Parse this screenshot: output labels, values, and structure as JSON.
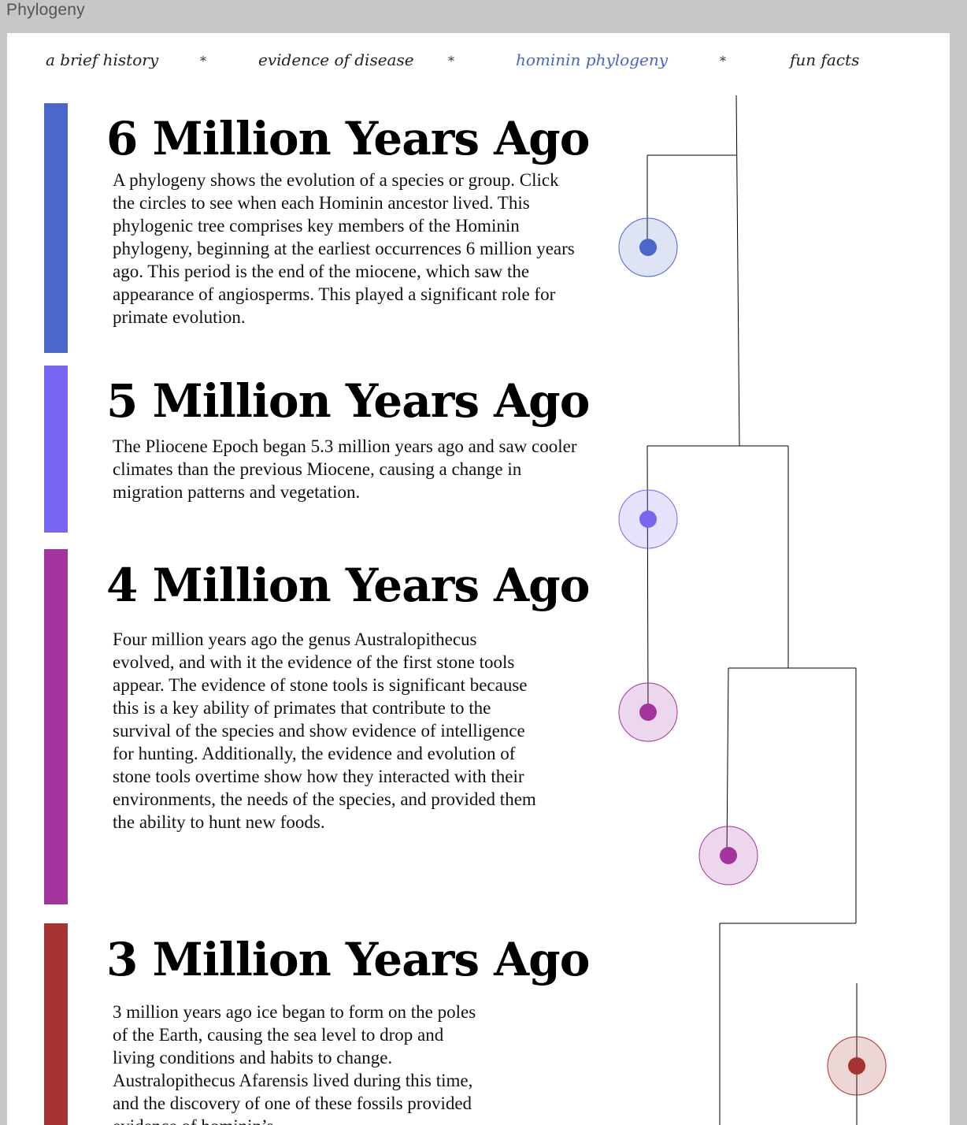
{
  "window": {
    "title": "Phylogeny"
  },
  "nav": {
    "items": [
      {
        "label": "a brief history"
      },
      {
        "label": "evidence of disease"
      },
      {
        "label": "hominin phylogeny",
        "active": true
      },
      {
        "label": "fun facts"
      }
    ],
    "separator": "*"
  },
  "colors": {
    "era6": "#4b67c9",
    "era5": "#7766f2",
    "era4": "#a4359f",
    "era3": "#a63432",
    "active_link": "#4a63c7"
  },
  "eras": [
    {
      "title": "6 Million Years Ago",
      "text": "A phylogeny shows the evolution of a species or group. Click the circles to see when each Hominin ancestor lived. This phylogenic tree comprises key members of the Hominin phylogeny, beginning at the earliest occurrences 6 million years ago. This period is the end of the miocene, which saw the appearance of angiosperms. This played a significant role for primate evolution."
    },
    {
      "title": "5 Million Years Ago",
      "text": "The Pliocene Epoch began 5.3 million years ago and saw cooler climates than the previous Miocene, causing a change in migration patterns and vegetation."
    },
    {
      "title": "4 Million Years Ago",
      "text": "Four million years ago the genus Australopithecus evolved, and with it the evidence of the first stone tools appear. The evidence of stone tools is significant because this is a key ability of primates that contribute to the survival of the species and show evidence of intelligence for hunting. Additionally, the evidence and evolution of stone tools overtime show how they interacted with their environments, the needs of the species, and provided them the ability to hunt new foods."
    },
    {
      "title": "3 Million Years Ago",
      "text": "3 million years ago ice began to form on the poles of the Earth, causing the sea level to drop and living conditions and habits to change. Australopithecus Afarensis lived during this time, and the discovery of one of these fossils provided evidence of hominin’s"
    }
  ]
}
